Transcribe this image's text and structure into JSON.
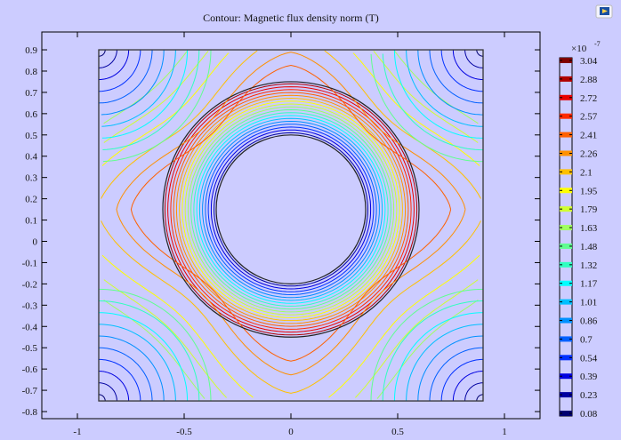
{
  "chart_data": {
    "type": "contour",
    "title": "Contour: Magnetic flux density norm (T)",
    "xlim": [
      -1.1,
      1.2
    ],
    "ylim": [
      -0.84,
      0.98
    ],
    "x_ticks": [
      "-1",
      "-0.5",
      "0",
      "0.5",
      "1"
    ],
    "x_tick_values": [
      -1,
      -0.5,
      0,
      0.5,
      1
    ],
    "y_ticks": [
      "0.9",
      "0.8",
      "0.7",
      "0.6",
      "0.5",
      "0.4",
      "0.3",
      "0.2",
      "0.1",
      "0",
      "-0.1",
      "-0.2",
      "-0.3",
      "-0.4",
      "-0.5",
      "-0.6",
      "-0.7",
      "-0.8"
    ],
    "y_tick_values": [
      0.9,
      0.8,
      0.7,
      0.6,
      0.5,
      0.4,
      0.3,
      0.2,
      0.1,
      0,
      -0.1,
      -0.2,
      -0.3,
      -0.4,
      -0.5,
      -0.6,
      -0.7,
      -0.8
    ],
    "grid": false,
    "colorbar": {
      "exponent_label": "×10",
      "exponent": "-7",
      "levels": [
        "3.04",
        "2.88",
        "2.72",
        "2.57",
        "2.41",
        "2.26",
        "2.1",
        "1.95",
        "1.79",
        "1.63",
        "1.48",
        "1.32",
        "1.17",
        "1.01",
        "0.86",
        "0.7",
        "0.54",
        "0.39",
        "0.23",
        "0.08"
      ],
      "colors": [
        "#800000",
        "#b00000",
        "#e80000",
        "#ff2a00",
        "#ff6000",
        "#ff9000",
        "#ffc000",
        "#ffff00",
        "#d0ff30",
        "#a0ff60",
        "#60ff90",
        "#30ffc0",
        "#00ffff",
        "#00c0ff",
        "#0090ff",
        "#0060ff",
        "#0030ff",
        "#0000e0",
        "#0000a0",
        "#000070"
      ]
    },
    "geometry": {
      "square": {
        "x": [
          -0.9,
          0.9
        ],
        "y": [
          -0.75,
          0.9
        ]
      },
      "circles": [
        {
          "cx": 0,
          "cy": 0.15,
          "r": 0.6
        },
        {
          "cx": 0,
          "cy": 0.15,
          "r": 0.35
        }
      ]
    }
  },
  "toolbar": {
    "icon": "comsol-image-export-icon"
  }
}
